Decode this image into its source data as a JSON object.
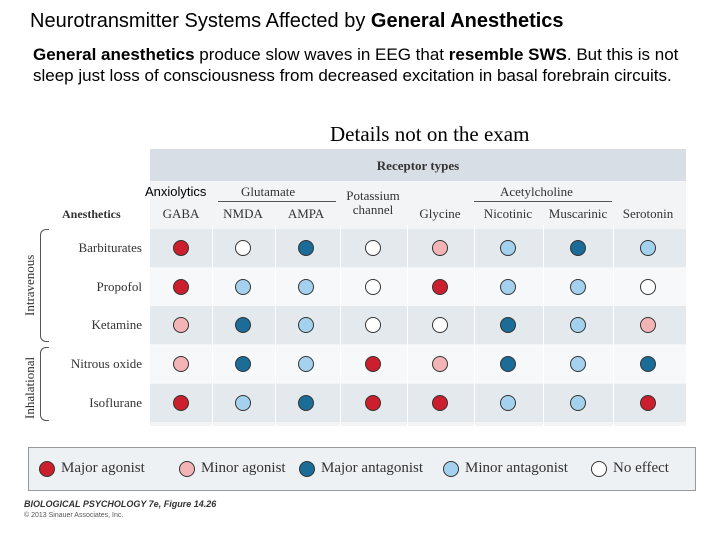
{
  "slide": {
    "title_plain": "Neurotransmitter Systems Affected by ",
    "title_bold": "General Anesthetics",
    "para": {
      "b1": "General anesthetics",
      "t1": " produce slow waves in EEG that ",
      "b2": "resemble SWS",
      "t2": ". But this is not sleep just loss of consciousness from decreased excitation in basal forebrain circuits."
    },
    "details_note": "Details not on the exam"
  },
  "figure": {
    "receptor_types_header": "Receptor types",
    "anxiolytics_label": "Anxiolytics",
    "anesthetics_header": "Anesthetics",
    "groups": {
      "glutamate": "Glutamate",
      "acetylcholine": "Acetylcholine"
    },
    "columns": [
      {
        "label": "GABA"
      },
      {
        "label": "NMDA"
      },
      {
        "label": "AMPA"
      },
      {
        "label": "Potassium channel",
        "line1": "Potassium",
        "line2": "channel"
      },
      {
        "label": "Glycine"
      },
      {
        "label": "Nicotinic"
      },
      {
        "label": "Muscarinic"
      },
      {
        "label": "Serotonin"
      }
    ],
    "route_labels": {
      "intravenous": "Intravenous",
      "inhalational": "Inhalational"
    },
    "rows": [
      {
        "name": "Barbiturates",
        "route": "Intravenous",
        "effects": [
          "major_agonist",
          "no_effect",
          "major_antagonist",
          "no_effect",
          "minor_agonist",
          "minor_antagonist",
          "major_antagonist",
          "minor_antagonist"
        ]
      },
      {
        "name": "Propofol",
        "route": "Intravenous",
        "effects": [
          "major_agonist",
          "minor_antagonist",
          "minor_antagonist",
          "no_effect",
          "major_agonist",
          "minor_antagonist",
          "minor_antagonist",
          "no_effect"
        ]
      },
      {
        "name": "Ketamine",
        "route": "Intravenous",
        "effects": [
          "minor_agonist",
          "major_antagonist",
          "minor_antagonist",
          "no_effect",
          "no_effect",
          "major_antagonist",
          "minor_antagonist",
          "minor_agonist"
        ]
      },
      {
        "name": "Nitrous oxide",
        "route": "Inhalational",
        "effects": [
          "minor_agonist",
          "major_antagonist",
          "minor_antagonist",
          "major_agonist",
          "minor_agonist",
          "major_antagonist",
          "minor_antagonist",
          "major_antagonist"
        ]
      },
      {
        "name": "Isoflurane",
        "route": "Inhalational",
        "effects": [
          "major_agonist",
          "minor_antagonist",
          "major_antagonist",
          "major_agonist",
          "major_agonist",
          "minor_antagonist",
          "minor_antagonist",
          "major_agonist"
        ]
      }
    ],
    "legend": [
      {
        "key": "major_agonist",
        "label": "Major agonist",
        "color": "#cc1f2d"
      },
      {
        "key": "minor_agonist",
        "label": "Minor agonist",
        "color": "#f3b4b6"
      },
      {
        "key": "major_antagonist",
        "label": "Major antagonist",
        "color": "#1c6c98"
      },
      {
        "key": "minor_antagonist",
        "label": "Minor antagonist",
        "color": "#a4d2ee"
      },
      {
        "key": "no_effect",
        "label": "No effect",
        "color": "#ffffff"
      }
    ],
    "citation": "BIOLOGICAL PSYCHOLOGY 7e, Figure 14.26",
    "copyright": "© 2013 Sinauer Associates, Inc."
  }
}
